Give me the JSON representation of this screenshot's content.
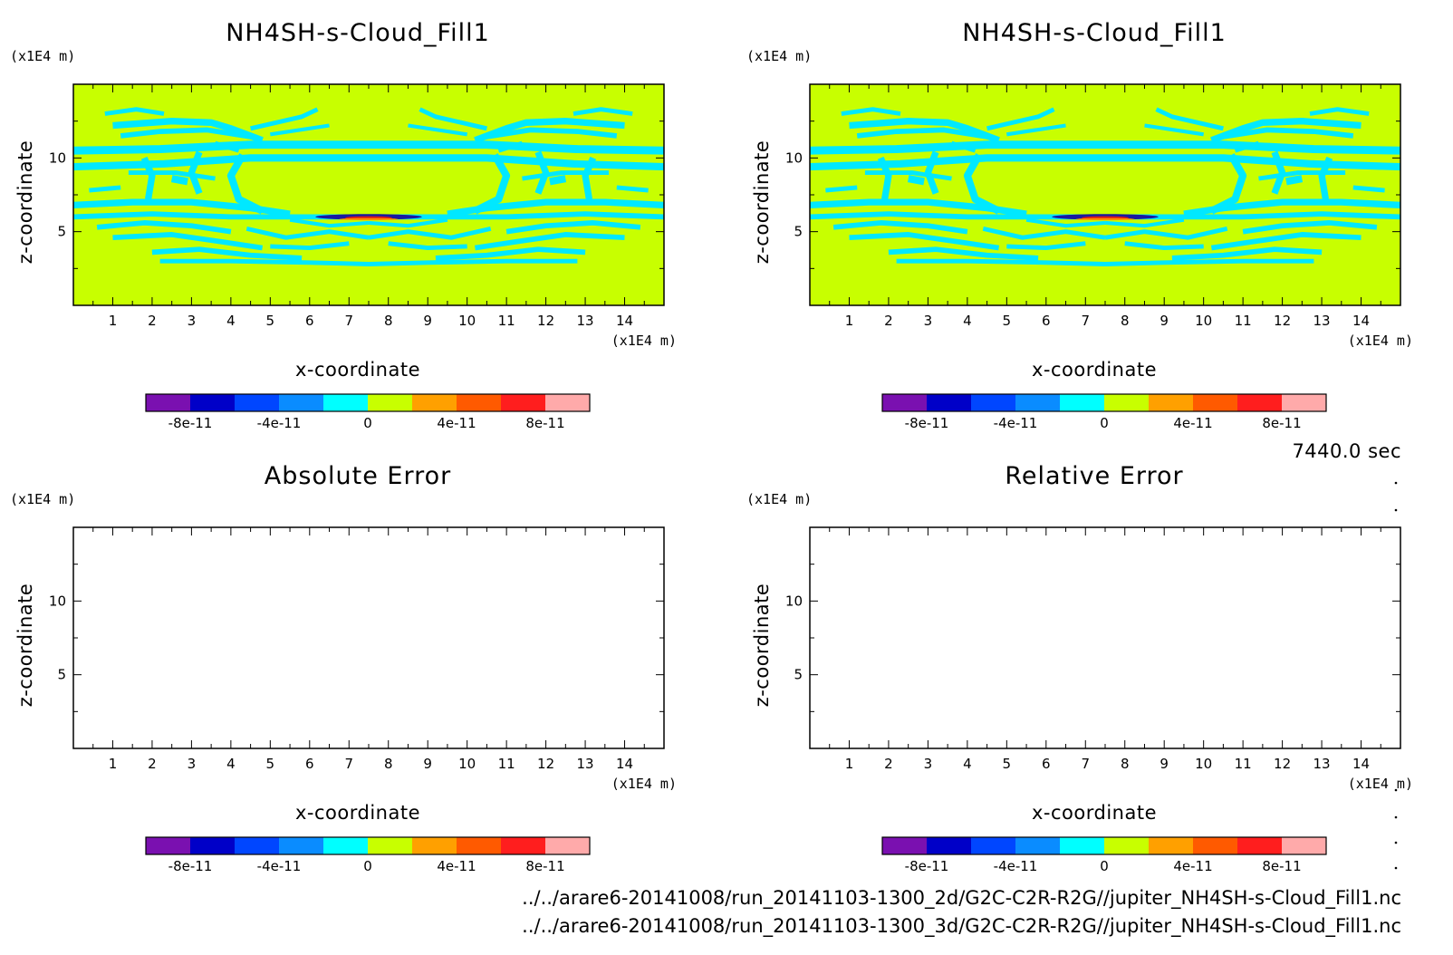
{
  "panels": [
    {
      "title": "NH4SH-s-Cloud_Fill1",
      "z_unit": "(x1E4 m)",
      "x_unit": "(x1E4 m)",
      "xlabel": "x-coordinate",
      "ylabel": "z-coordinate",
      "xticks": [
        "1",
        "2",
        "3",
        "4",
        "5",
        "6",
        "7",
        "8",
        "9",
        "10",
        "11",
        "12",
        "13",
        "14"
      ],
      "yticks": [
        "5",
        "10"
      ],
      "filled": true
    },
    {
      "title": "NH4SH-s-Cloud_Fill1",
      "z_unit": "(x1E4 m)",
      "x_unit": "(x1E4 m)",
      "xlabel": "x-coordinate",
      "ylabel": "z-coordinate",
      "xticks": [
        "1",
        "2",
        "3",
        "4",
        "5",
        "6",
        "7",
        "8",
        "9",
        "10",
        "11",
        "12",
        "13",
        "14"
      ],
      "yticks": [
        "5",
        "10"
      ],
      "filled": true
    },
    {
      "title": "Absolute Error",
      "z_unit": "(x1E4 m)",
      "x_unit": "(x1E4 m)",
      "xlabel": "x-coordinate",
      "ylabel": "z-coordinate",
      "xticks": [
        "1",
        "2",
        "3",
        "4",
        "5",
        "6",
        "7",
        "8",
        "9",
        "10",
        "11",
        "12",
        "13",
        "14"
      ],
      "yticks": [
        "5",
        "10"
      ],
      "filled": false
    },
    {
      "title": "Relative Error",
      "z_unit": "(x1E4 m)",
      "x_unit": "(x1E4 m)",
      "xlabel": "x-coordinate",
      "ylabel": "z-coordinate",
      "xticks": [
        "1",
        "2",
        "3",
        "4",
        "5",
        "6",
        "7",
        "8",
        "9",
        "10",
        "11",
        "12",
        "13",
        "14"
      ],
      "yticks": [
        "5",
        "10"
      ],
      "filled": false
    }
  ],
  "colorbar": {
    "colors": [
      "#7a10b0",
      "#0000c8",
      "#0046ff",
      "#0a8cff",
      "#00ffff",
      "#c8ff00",
      "#ffa000",
      "#ff5a00",
      "#ff1e1e",
      "#ffaaaa"
    ],
    "labels": [
      "-8e-11",
      "-4e-11",
      "0",
      "4e-11",
      "8e-11"
    ]
  },
  "field_colors": {
    "background": "#c8ff00",
    "cloud": "#00e8ff",
    "core_dark": "#1a1aa0",
    "core_red": "#d81818",
    "core_orange": "#ff8c00"
  },
  "time_label": "7440.0 sec",
  "file_paths": [
    "../../arare6-20141008/run_20141103-1300_2d/G2C-C2R-R2G//jupiter_NH4SH-s-Cloud_Fill1.nc",
    "../../arare6-20141008/run_20141103-1300_3d/G2C-C2R-R2G//jupiter_NH4SH-s-Cloud_Fill1.nc"
  ],
  "chart_data": [
    {
      "type": "heatmap",
      "title": "NH4SH-s-Cloud_Fill1",
      "xlabel": "x-coordinate",
      "ylabel": "z-coordinate",
      "xunit": "(x1E4 m)",
      "yunit": "(x1E4 m)",
      "xlim": [
        0,
        15
      ],
      "ylim": [
        0,
        15
      ],
      "xticks": [
        1,
        2,
        3,
        4,
        5,
        6,
        7,
        8,
        9,
        10,
        11,
        12,
        13,
        14
      ],
      "yticks": [
        5,
        10
      ],
      "colorbar_levels": [
        -1e-10,
        -8e-11,
        -6e-11,
        -4e-11,
        -2e-11,
        0,
        2e-11,
        4e-11,
        6e-11,
        8e-11,
        1e-10
      ],
      "colorbar_tick_labels": [
        "-8e-11",
        "-4e-11",
        "0",
        "4e-11",
        "8e-11"
      ]
    },
    {
      "type": "heatmap",
      "title": "NH4SH-s-Cloud_Fill1",
      "xlabel": "x-coordinate",
      "ylabel": "z-coordinate",
      "xunit": "(x1E4 m)",
      "yunit": "(x1E4 m)",
      "xlim": [
        0,
        15
      ],
      "ylim": [
        0,
        15
      ],
      "xticks": [
        1,
        2,
        3,
        4,
        5,
        6,
        7,
        8,
        9,
        10,
        11,
        12,
        13,
        14
      ],
      "yticks": [
        5,
        10
      ],
      "colorbar_levels": [
        -1e-10,
        -8e-11,
        -6e-11,
        -4e-11,
        -2e-11,
        0,
        2e-11,
        4e-11,
        6e-11,
        8e-11,
        1e-10
      ],
      "colorbar_tick_labels": [
        "-8e-11",
        "-4e-11",
        "0",
        "4e-11",
        "8e-11"
      ]
    },
    {
      "type": "heatmap",
      "title": "Absolute Error",
      "xlabel": "x-coordinate",
      "ylabel": "z-coordinate",
      "xunit": "(x1E4 m)",
      "yunit": "(x1E4 m)",
      "xlim": [
        0,
        15
      ],
      "ylim": [
        0,
        15
      ],
      "xticks": [
        1,
        2,
        3,
        4,
        5,
        6,
        7,
        8,
        9,
        10,
        11,
        12,
        13,
        14
      ],
      "yticks": [
        5,
        10
      ],
      "values": "blank",
      "colorbar_tick_labels": [
        "-8e-11",
        "-4e-11",
        "0",
        "4e-11",
        "8e-11"
      ]
    },
    {
      "type": "heatmap",
      "title": "Relative Error",
      "xlabel": "x-coordinate",
      "ylabel": "z-coordinate",
      "xunit": "(x1E4 m)",
      "yunit": "(x1E4 m)",
      "xlim": [
        0,
        15
      ],
      "ylim": [
        0,
        15
      ],
      "xticks": [
        1,
        2,
        3,
        4,
        5,
        6,
        7,
        8,
        9,
        10,
        11,
        12,
        13,
        14
      ],
      "yticks": [
        5,
        10
      ],
      "values": "blank",
      "colorbar_tick_labels": [
        "-8e-11",
        "-4e-11",
        "0",
        "4e-11",
        "8e-11"
      ]
    }
  ]
}
